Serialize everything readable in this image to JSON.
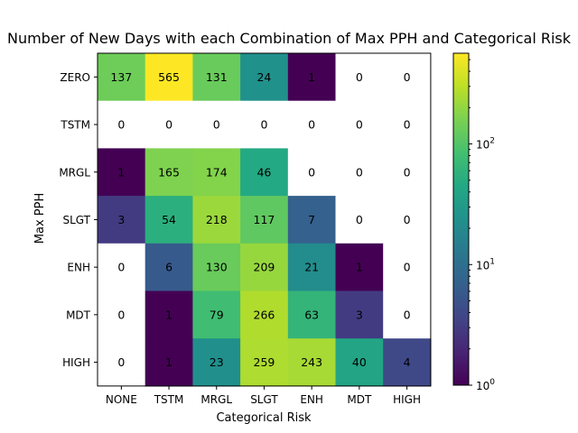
{
  "chart_data": {
    "type": "heatmap",
    "title": "Number of New Days with each Combination of Max PPH and Categorical Risk",
    "xlabel": "Categorical Risk",
    "ylabel": "Max PPH",
    "x_categories": [
      "NONE",
      "TSTM",
      "MRGL",
      "SLGT",
      "ENH",
      "MDT",
      "HIGH"
    ],
    "y_categories": [
      "ZERO",
      "TSTM",
      "MRGL",
      "SLGT",
      "ENH",
      "MDT",
      "HIGH"
    ],
    "values": [
      [
        137,
        565,
        131,
        24,
        1,
        0,
        0
      ],
      [
        0,
        0,
        0,
        0,
        0,
        0,
        0
      ],
      [
        1,
        165,
        174,
        46,
        0,
        0,
        0
      ],
      [
        3,
        54,
        218,
        117,
        7,
        0,
        0
      ],
      [
        0,
        6,
        130,
        209,
        21,
        1,
        0
      ],
      [
        0,
        1,
        79,
        266,
        63,
        3,
        0
      ],
      [
        0,
        1,
        23,
        259,
        243,
        40,
        4
      ]
    ],
    "colorscale": "viridis",
    "color_scale_type": "log",
    "colorbar_range": [
      1,
      565
    ],
    "colorbar_ticks": [
      {
        "value": 1,
        "base": "10",
        "exp": "0"
      },
      {
        "value": 10,
        "base": "10",
        "exp": "1"
      },
      {
        "value": 100,
        "base": "10",
        "exp": "2"
      }
    ],
    "zero_color": "#ffffff"
  }
}
